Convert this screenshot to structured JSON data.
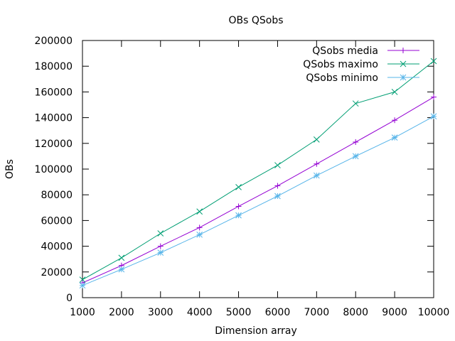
{
  "chart_data": {
    "type": "line",
    "title": "OBs QSobs",
    "xlabel": "Dimension array",
    "ylabel": "OBs",
    "xlim": [
      1000,
      10000
    ],
    "ylim": [
      0,
      200000
    ],
    "xticks": [
      1000,
      2000,
      3000,
      4000,
      5000,
      6000,
      7000,
      8000,
      9000,
      10000
    ],
    "yticks": [
      0,
      20000,
      40000,
      60000,
      80000,
      100000,
      120000,
      140000,
      160000,
      180000,
      200000
    ],
    "grid": false,
    "legend_position": "top-right",
    "x": [
      1000,
      2000,
      3000,
      4000,
      5000,
      6000,
      7000,
      8000,
      9000,
      10000
    ],
    "series": [
      {
        "name": "QSobs media",
        "marker": "plus",
        "color": "#9400d3",
        "values": [
          11500,
          25000,
          40000,
          54500,
          71000,
          87000,
          104000,
          121000,
          138000,
          156000
        ]
      },
      {
        "name": "QSobs maximo",
        "marker": "x",
        "color": "#009e73",
        "values": [
          14000,
          31000,
          50000,
          67000,
          86000,
          103000,
          123000,
          151000,
          160000,
          184000
        ]
      },
      {
        "name": "QSobs minimo",
        "marker": "star",
        "color": "#56b4e9",
        "values": [
          9500,
          22000,
          35000,
          49000,
          64000,
          79000,
          95000,
          110000,
          124500,
          141000
        ]
      }
    ]
  }
}
